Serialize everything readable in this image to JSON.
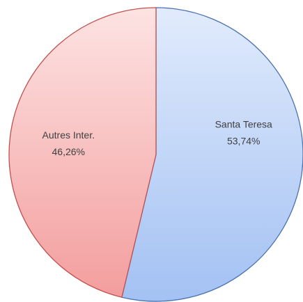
{
  "chart_data": {
    "type": "pie",
    "categories": [
      "Santa Teresa",
      "Autres Inter."
    ],
    "values": [
      53.74,
      46.26
    ],
    "value_labels": [
      "53,74%",
      "46,26%"
    ],
    "colors": [
      "#4a72b0",
      "#c0504d"
    ]
  }
}
